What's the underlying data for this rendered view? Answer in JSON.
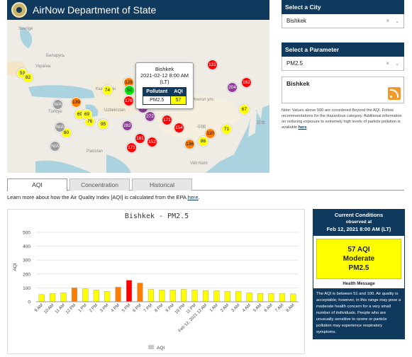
{
  "header": {
    "title": "AirNow Department of State"
  },
  "map": {
    "labels": [
      "Sverige",
      "Беларусь",
      "Україна",
      "Türkiye",
      "Казахстан",
      "Uzbekistan",
      "Монгол улс",
      "中国",
      "日本",
      "Việt Nam",
      "Pakistan"
    ],
    "markers": [
      {
        "value": "53",
        "color": "#ffff00",
        "text": "#000"
      },
      {
        "value": "82",
        "color": "#ffff00",
        "text": "#000"
      },
      {
        "value": "N/A",
        "color": "#9a9a9a",
        "text": "#fff"
      },
      {
        "value": "74",
        "color": "#ffff00",
        "text": "#000"
      },
      {
        "value": "139",
        "color": "#ff7e00",
        "text": "#000"
      },
      {
        "value": "128",
        "color": "#ff7e00",
        "text": "#000"
      },
      {
        "value": "50",
        "color": "#00e400",
        "text": "#000"
      },
      {
        "value": "57",
        "color": "#ffff00",
        "text": "#000"
      },
      {
        "value": "159",
        "color": "#ff0000",
        "text": "#fff"
      },
      {
        "value": "131",
        "color": "#ff0000",
        "text": "#fff"
      },
      {
        "value": "204",
        "color": "#8f3f97",
        "text": "#fff"
      },
      {
        "value": "162",
        "color": "#ff0000",
        "text": "#fff"
      },
      {
        "value": "69",
        "color": "#ffff00",
        "text": "#000"
      },
      {
        "value": "176",
        "color": "#ff0000",
        "text": "#fff"
      },
      {
        "value": "133",
        "color": "#ff7e00",
        "text": "#000"
      },
      {
        "value": "252",
        "color": "#8f3f97",
        "text": "#fff"
      },
      {
        "value": "272",
        "color": "#8f3f97",
        "text": "#fff"
      },
      {
        "value": "N/A",
        "color": "#9a9a9a",
        "text": "#fff"
      },
      {
        "value": "76",
        "color": "#ffff00",
        "text": "#000"
      },
      {
        "value": "95",
        "color": "#ffff00",
        "text": "#000"
      },
      {
        "value": "282",
        "color": "#8f3f97",
        "text": "#fff"
      },
      {
        "value": "171",
        "color": "#ff0000",
        "text": "#fff"
      },
      {
        "value": "154",
        "color": "#ff0000",
        "text": "#fff"
      },
      {
        "value": "67",
        "color": "#ffff00",
        "text": "#000"
      },
      {
        "value": "80",
        "color": "#ffff00",
        "text": "#000"
      },
      {
        "value": "181",
        "color": "#ff0000",
        "text": "#fff"
      },
      {
        "value": "152",
        "color": "#ff0000",
        "text": "#fff"
      },
      {
        "value": "110",
        "color": "#ff7e00",
        "text": "#000"
      },
      {
        "value": "71",
        "color": "#ffff00",
        "text": "#000"
      },
      {
        "value": "86",
        "color": "#ffff00",
        "text": "#000"
      },
      {
        "value": "136",
        "color": "#ff7e00",
        "text": "#000"
      },
      {
        "value": "N/A",
        "color": "#9a9a9a",
        "text": "#fff"
      },
      {
        "value": "69",
        "color": "#ffff00",
        "text": "#000"
      },
      {
        "value": "171",
        "color": "#ff0000",
        "text": "#fff"
      }
    ],
    "popup": {
      "city": "Bishkek",
      "time": "2021-02-12 8:00 AM (LT)",
      "col_pollutant": "Pollutant",
      "col_aqi": "AQI",
      "pollutant": "PM2.5",
      "aqi": "57"
    }
  },
  "right": {
    "city_head": "Select a City",
    "city_value": "Bishkek",
    "param_head": "Select a Parameter",
    "param_value": "PM2.5",
    "clear_glyph": "×",
    "caret_glyph": "⌄",
    "site_name": "Bishkek",
    "note": "Note: Values above 500 are considered Beyond the AQI. Follow recommendations for the Hazardous category. Additional information on reducing exposure to extremely high levels of particle pollution is available",
    "note_link": "here"
  },
  "tabs": [
    "AQI",
    "Concentration",
    "Historical"
  ],
  "learn": {
    "text": "Learn more about how the Air Quality Index [AQI] is calculated from the EPA",
    "link": "here"
  },
  "chart_data": {
    "type": "bar",
    "title": "Bishkek - PM2.5",
    "ylabel": "AQI",
    "xlabel": "",
    "ylim": [
      0,
      500
    ],
    "yticks": [
      0,
      100,
      200,
      300,
      400,
      500
    ],
    "legend": "AQI",
    "categories": [
      "9 AM",
      "10 AM",
      "11 AM",
      "12 PM",
      "1 PM",
      "2 PM",
      "3 PM",
      "4 PM",
      "5 PM",
      "6 PM",
      "7 PM",
      "8 PM",
      "9 PM",
      "10 PM",
      "11 PM",
      "Feb 12, 2021 12 AM",
      "1 AM",
      "2 AM",
      "3 AM",
      "4 AM",
      "5 AM",
      "6 AM",
      "7 AM",
      "8 AM"
    ],
    "values": [
      52,
      60,
      65,
      100,
      95,
      85,
      75,
      105,
      155,
      135,
      90,
      85,
      85,
      90,
      85,
      80,
      80,
      75,
      75,
      65,
      60,
      60,
      60,
      57
    ],
    "colors": [
      "#ffff00",
      "#ffff00",
      "#ffff00",
      "#ff7e00",
      "#ffff00",
      "#ffff00",
      "#ffff00",
      "#ff7e00",
      "#ff0000",
      "#ff7e00",
      "#ffff00",
      "#ffff00",
      "#ffff00",
      "#ffff00",
      "#ffff00",
      "#ffff00",
      "#ffff00",
      "#ffff00",
      "#ffff00",
      "#ffff00",
      "#ffff00",
      "#ffff00",
      "#ffff00",
      "#ffff00"
    ]
  },
  "conditions": {
    "title": "Current Conditions",
    "observed": "observed at",
    "time": "Feb 12, 2021 8:00 AM (LT)",
    "aqi": "57 AQI",
    "category": "Moderate",
    "pollutant": "PM2.5",
    "hm_title": "Health Message",
    "hm_text": "The AQI is between 51 and 100. Air quality is acceptable; however, in this range may pose a moderate health concern for a very small number of individuals. People who are unusually sensitive to ozone or particle pollution may experience respiratory symptoms."
  }
}
